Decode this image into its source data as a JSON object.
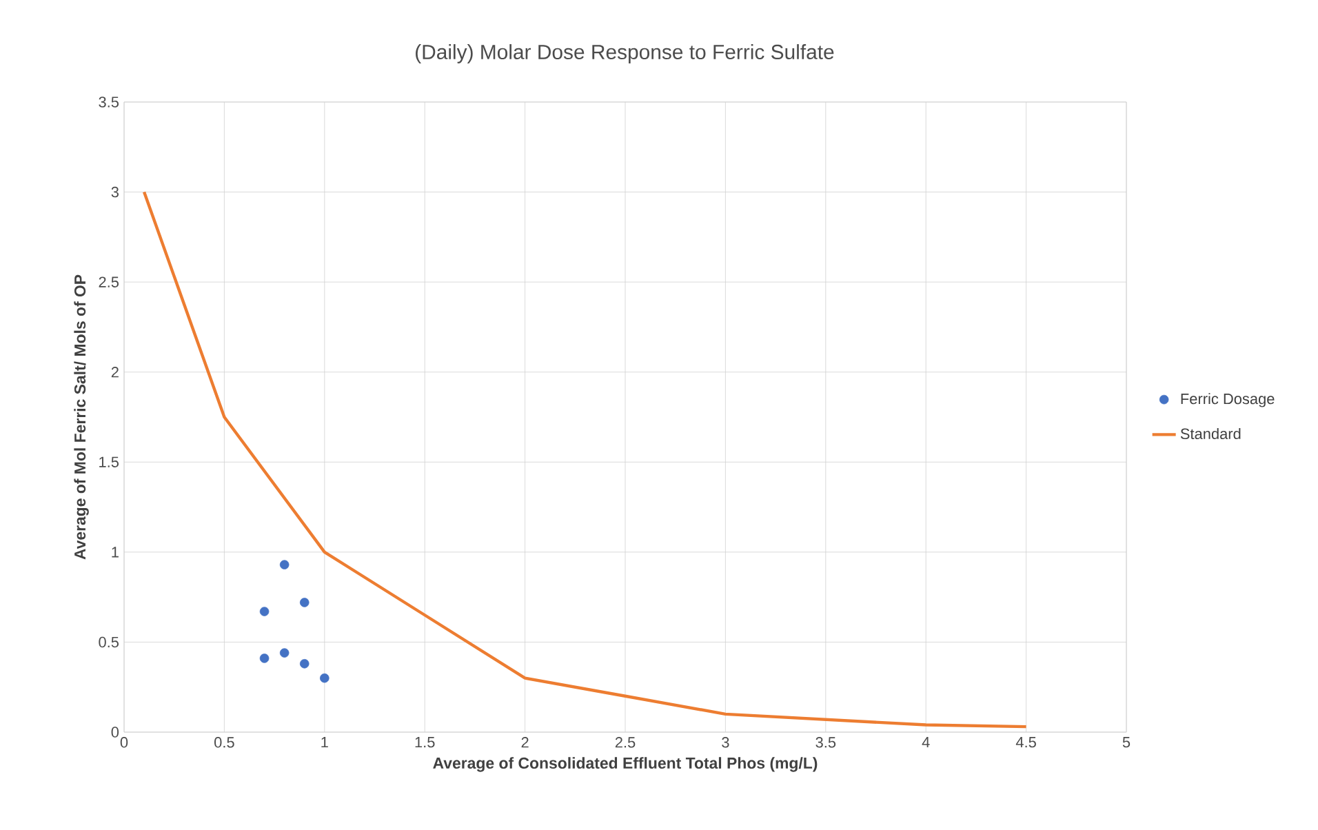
{
  "chart_data": {
    "type": "scatter",
    "title": "(Daily) Molar Dose Response to Ferric Sulfate",
    "xlabel": "Average of Consolidated Effluent Total Phos (mg/L)",
    "ylabel": "Average of Mol Ferric Salt/ Mols of OP",
    "xlim": [
      0,
      5
    ],
    "xticks": [
      0,
      0.5,
      1,
      1.5,
      2,
      2.5,
      3,
      3.5,
      4,
      4.5,
      5
    ],
    "ylim": [
      0,
      3.5
    ],
    "yticks": [
      0,
      0.5,
      1,
      1.5,
      2,
      2.5,
      3,
      3.5
    ],
    "grid": true,
    "legend": "right",
    "series": [
      {
        "name": "Ferric Dosage",
        "marker": "circle",
        "color": "#4472c4",
        "x": [
          0.7,
          0.8,
          0.9,
          0.7,
          0.8,
          0.9,
          1.0
        ],
        "values": [
          0.67,
          0.93,
          0.72,
          0.41,
          0.44,
          0.38,
          0.3
        ]
      },
      {
        "name": "Standard",
        "type": "line",
        "color": "#ed7d31",
        "x": [
          0.1,
          0.5,
          1,
          1.5,
          2,
          2.5,
          3,
          4,
          4.5
        ],
        "values": [
          3,
          1.75,
          1,
          0.65,
          0.3,
          0.2,
          0.1,
          0.04,
          0.03
        ]
      }
    ]
  }
}
